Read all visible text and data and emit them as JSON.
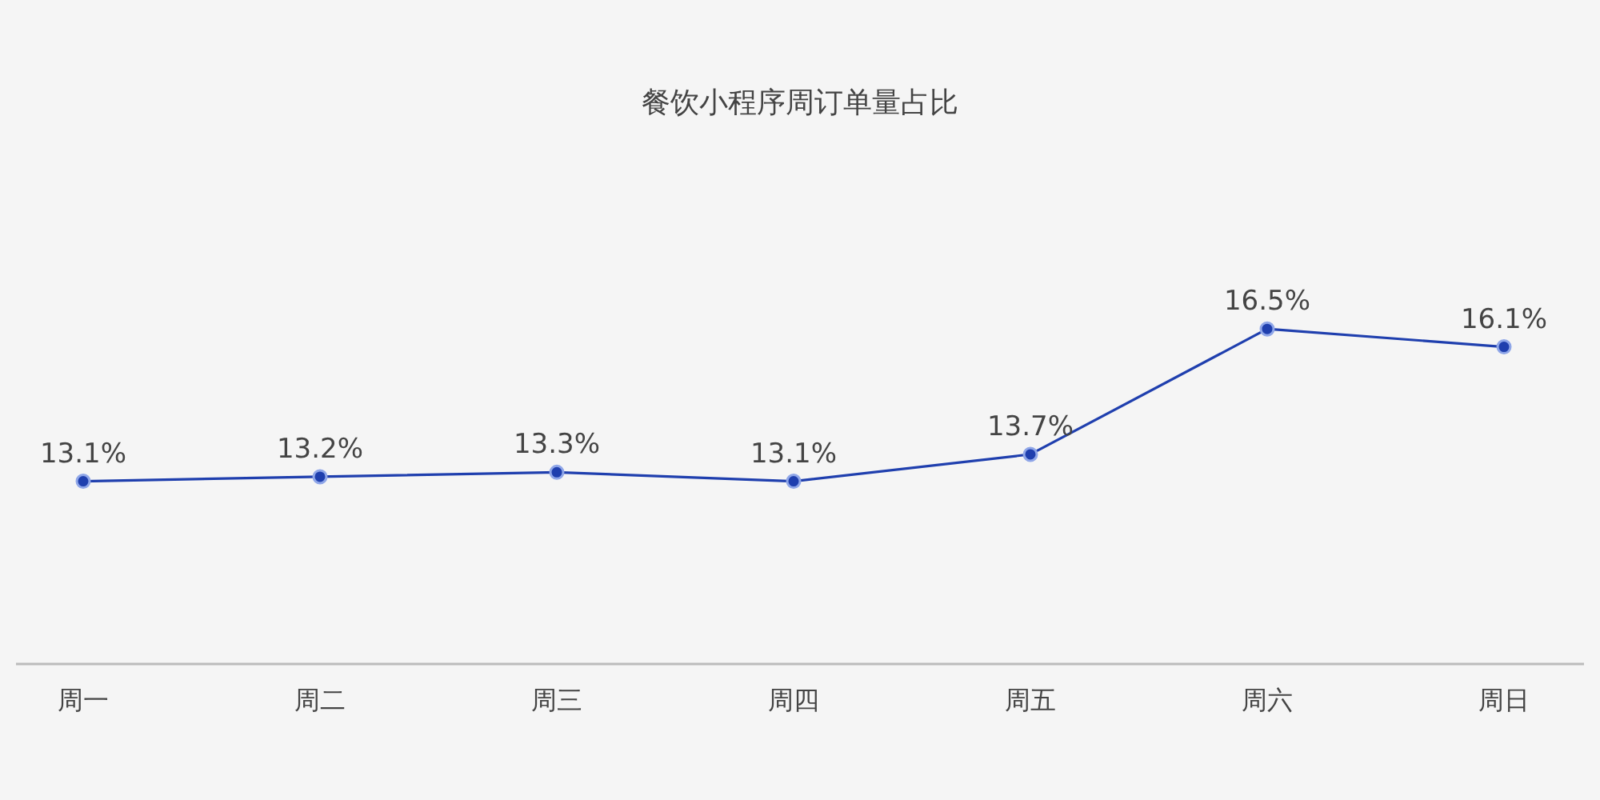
{
  "chart_data": {
    "type": "line",
    "title": "餐饮小程序周订单量占比",
    "categories": [
      "周一",
      "周二",
      "周三",
      "周四",
      "周五",
      "周六",
      "周日"
    ],
    "series": [
      {
        "color": "#1f3fae",
        "values": [
          13.1,
          13.2,
          13.3,
          13.1,
          13.7,
          16.5,
          16.1
        ],
        "value_labels": [
          "13.1%",
          "13.2%",
          "13.3%",
          "13.1%",
          "13.7%",
          "16.5%",
          "16.1%"
        ]
      }
    ],
    "tick_labels": "x",
    "marker": "circle",
    "line_style": "solid"
  }
}
